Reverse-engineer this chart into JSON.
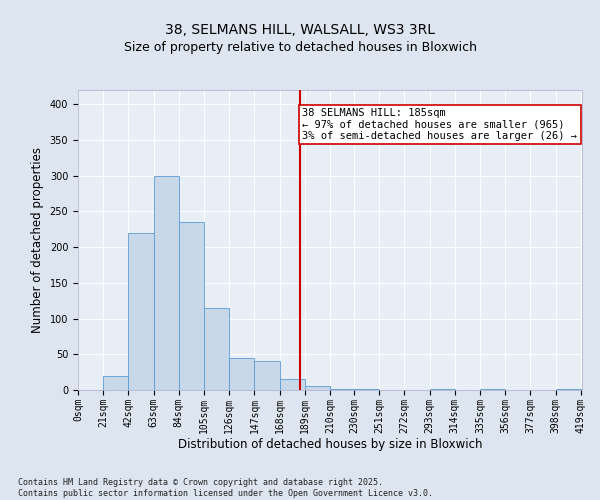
{
  "title1": "38, SELMANS HILL, WALSALL, WS3 3RL",
  "title2": "Size of property relative to detached houses in Bloxwich",
  "xlabel": "Distribution of detached houses by size in Bloxwich",
  "ylabel": "Number of detached properties",
  "bin_labels": [
    "0sqm",
    "21sqm",
    "42sqm",
    "63sqm",
    "84sqm",
    "105sqm",
    "126sqm",
    "147sqm",
    "168sqm",
    "189sqm",
    "210sqm",
    "230sqm",
    "251sqm",
    "272sqm",
    "293sqm",
    "314sqm",
    "335sqm",
    "356sqm",
    "377sqm",
    "398sqm",
    "419sqm"
  ],
  "bin_edges": [
    0,
    21,
    42,
    63,
    84,
    105,
    126,
    147,
    168,
    189,
    210,
    230,
    251,
    272,
    293,
    314,
    335,
    356,
    377,
    398,
    419
  ],
  "bar_heights": [
    0,
    20,
    220,
    300,
    235,
    115,
    45,
    40,
    15,
    5,
    2,
    2,
    0,
    0,
    2,
    0,
    2,
    0,
    0,
    2
  ],
  "bar_color": "#c8d8e8",
  "bar_edge_color": "#5b9bd5",
  "vline_x": 185,
  "vline_color": "#cc0000",
  "annotation_text": "38 SELMANS HILL: 185sqm\n← 97% of detached houses are smaller (965)\n3% of semi-detached houses are larger (26) →",
  "annotation_box_color": "#ffffff",
  "annotation_box_edge": "#cc0000",
  "ylim": [
    0,
    420
  ],
  "yticks": [
    0,
    50,
    100,
    150,
    200,
    250,
    300,
    350,
    400
  ],
  "bg_color": "#dde6f0",
  "plot_bg_color": "#e8eef6",
  "footer": "Contains HM Land Registry data © Crown copyright and database right 2025.\nContains public sector information licensed under the Open Government Licence v3.0.",
  "title1_fontsize": 10,
  "title2_fontsize": 9,
  "xlabel_fontsize": 8.5,
  "ylabel_fontsize": 8.5,
  "tick_fontsize": 7,
  "annotation_fontsize": 7.5,
  "footer_fontsize": 6
}
